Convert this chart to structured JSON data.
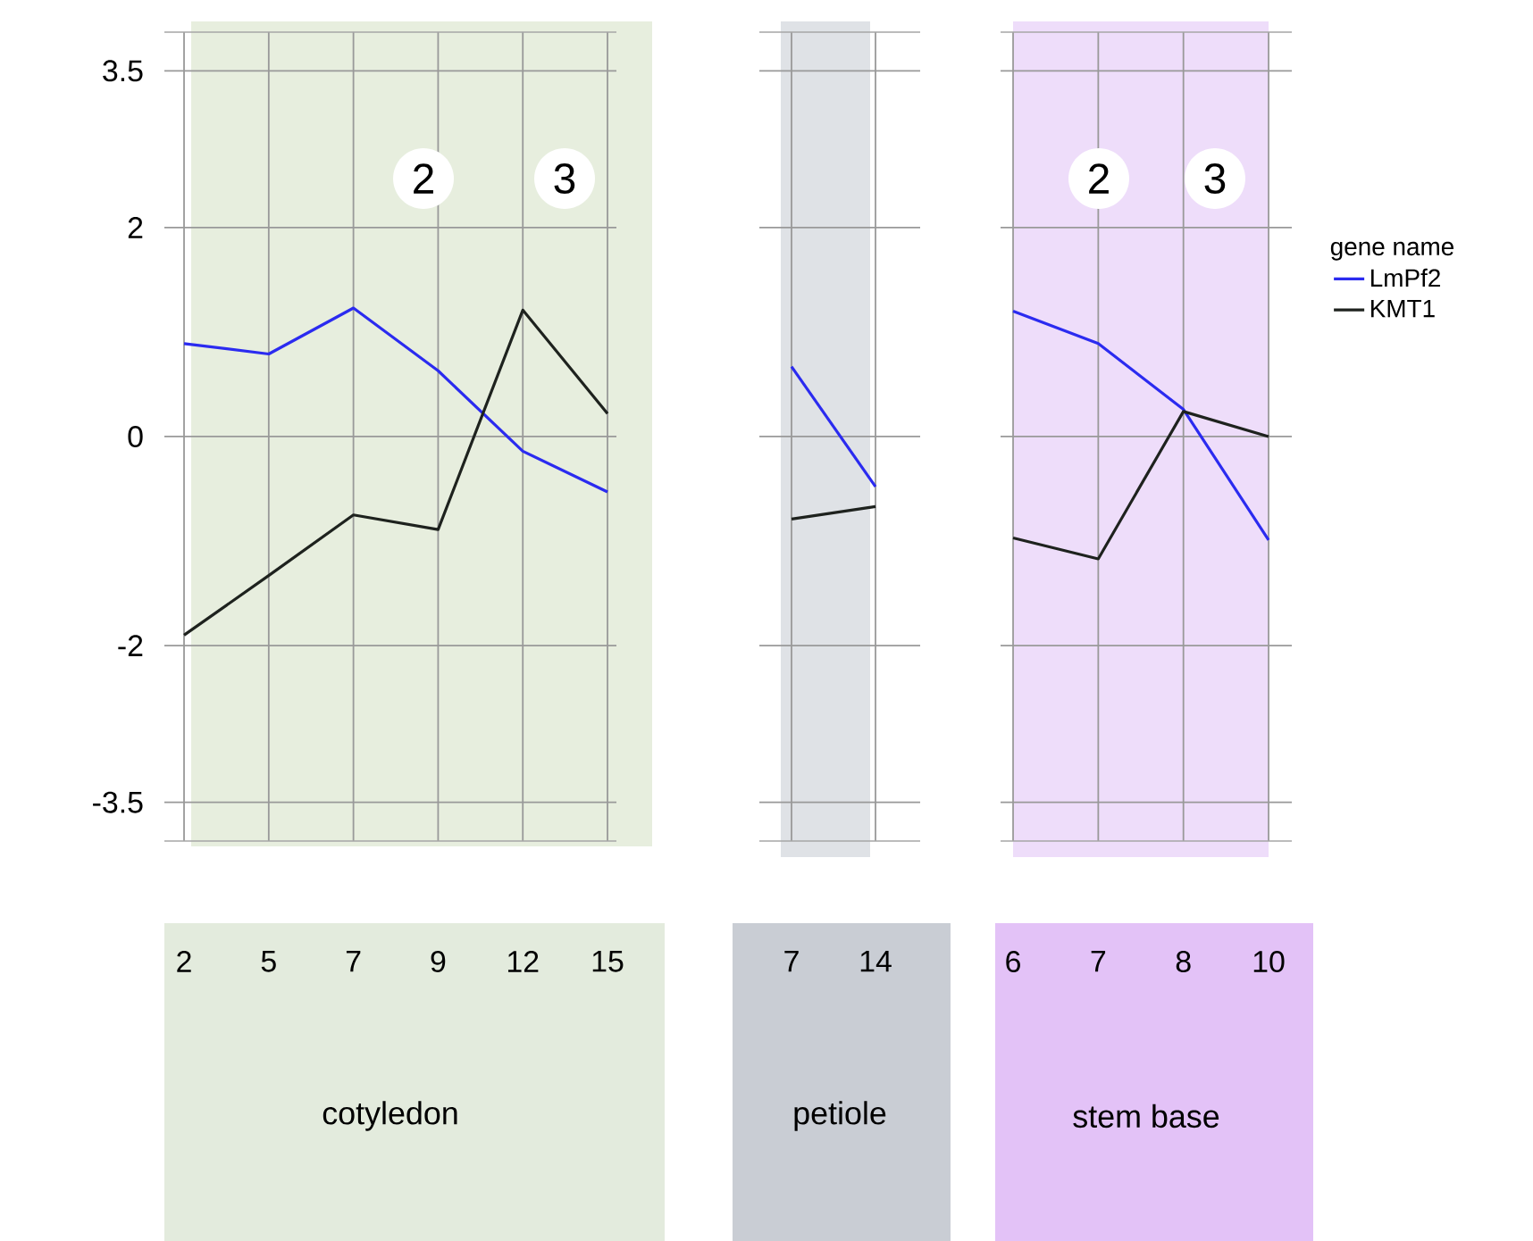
{
  "chart_data": [
    {
      "type": "line",
      "xlabel": "cotyledon",
      "categories": [
        "2",
        "5",
        "7",
        "9",
        "12",
        "15"
      ],
      "series": [
        {
          "color": "#2b2bf0",
          "values": [
            0.89,
            0.79,
            1.23,
            0.63,
            -0.14,
            -0.53
          ]
        },
        {
          "color": "#1e221e",
          "values": [
            -1.9,
            -1.33,
            -0.75,
            -0.89,
            1.21,
            0.22
          ]
        }
      ],
      "ylim": [
        -3.87,
        3.87
      ],
      "yticks": [
        3.5,
        2,
        0,
        -2,
        -3.5
      ],
      "grid": true,
      "annotations": [
        "2",
        "3"
      ]
    },
    {
      "type": "line",
      "xlabel": "petiole",
      "categories": [
        "7",
        "14"
      ],
      "series": [
        {
          "color": "#2b2bf0",
          "values": [
            0.67,
            -0.48
          ]
        },
        {
          "color": "#1e221e",
          "values": [
            -0.79,
            -0.67
          ]
        }
      ],
      "ylim": [
        -3.87,
        3.87
      ],
      "yticks": [
        3.5,
        2,
        0,
        -2,
        -3.5
      ],
      "grid": true,
      "tick_labels": "x"
    },
    {
      "type": "line",
      "xlabel": "stem base",
      "categories": [
        "6",
        "7",
        "8",
        "10"
      ],
      "series": [
        {
          "name": "LmPf2",
          "color": "#2b2bf0",
          "values": [
            1.2,
            0.89,
            0.26,
            -0.99
          ]
        },
        {
          "name": "KMT1",
          "color": "#1e221e",
          "values": [
            -0.97,
            -1.17,
            0.24,
            0.0
          ]
        }
      ],
      "ylim": [
        -3.87,
        3.87
      ],
      "yticks": [
        3.5,
        2,
        0,
        -2,
        -3.5
      ],
      "grid": true,
      "tick_labels": "x",
      "legend": "right",
      "legend_title": "gene name",
      "bands": [
        {
          "axis": "x",
          "from": "6",
          "to": "10",
          "color": "#eeddfa"
        }
      ],
      "annotations": [
        "2",
        "3"
      ]
    }
  ]
}
